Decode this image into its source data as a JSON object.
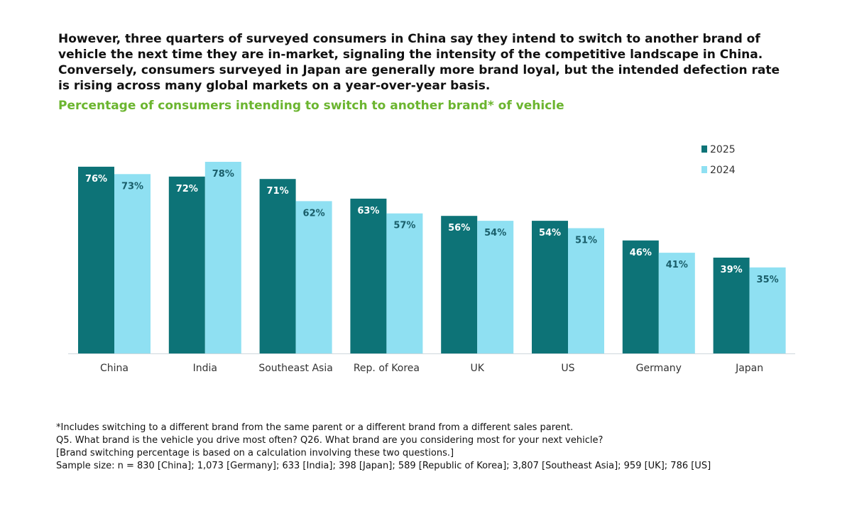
{
  "headline": "However, three quarters of surveyed consumers in China say they intend to switch to another brand of vehicle the next time they are in-market, signaling the intensity of the competitive landscape in China. Conversely, consumers surveyed in Japan are generally more brand loyal, but the intended defection rate is rising across many global markets on a year-over-year basis.",
  "colors": {
    "series_2025": "#0d7377",
    "series_2024": "#8fe0f2",
    "subtitle": "#6bb52f",
    "axis": "#cfd8dc",
    "label_on_2025": "#ffffff",
    "label_on_2024": "#1a5e6a"
  },
  "chart_data": {
    "type": "bar",
    "title": "Percentage of consumers intending to switch to another brand* of vehicle",
    "categories": [
      "China",
      "India",
      "Southeast Asia",
      "Rep. of Korea",
      "UK",
      "US",
      "Germany",
      "Japan"
    ],
    "series": [
      {
        "name": "2025",
        "values": [
          76,
          72,
          71,
          63,
          56,
          54,
          46,
          39
        ]
      },
      {
        "name": "2024",
        "values": [
          73,
          78,
          62,
          57,
          54,
          51,
          41,
          35
        ]
      }
    ],
    "value_suffix": "%",
    "ylim": [
      0,
      78
    ],
    "grid": false,
    "legend_position": "top-right"
  },
  "footnotes": [
    "*Includes switching to a different brand from the same parent or a different brand from a different sales parent.",
    "Q5. What brand is the vehicle you drive most often? Q26. What brand are you considering most for your next vehicle?",
    "[Brand switching percentage is based on a calculation involving these two questions.]",
    "Sample size: n = 830 [China]; 1,073 [Germany]; 633 [India]; 398 [Japan]; 589 [Republic of Korea]; 3,807 [Southeast Asia]; 959 [UK]; 786 [US]"
  ]
}
